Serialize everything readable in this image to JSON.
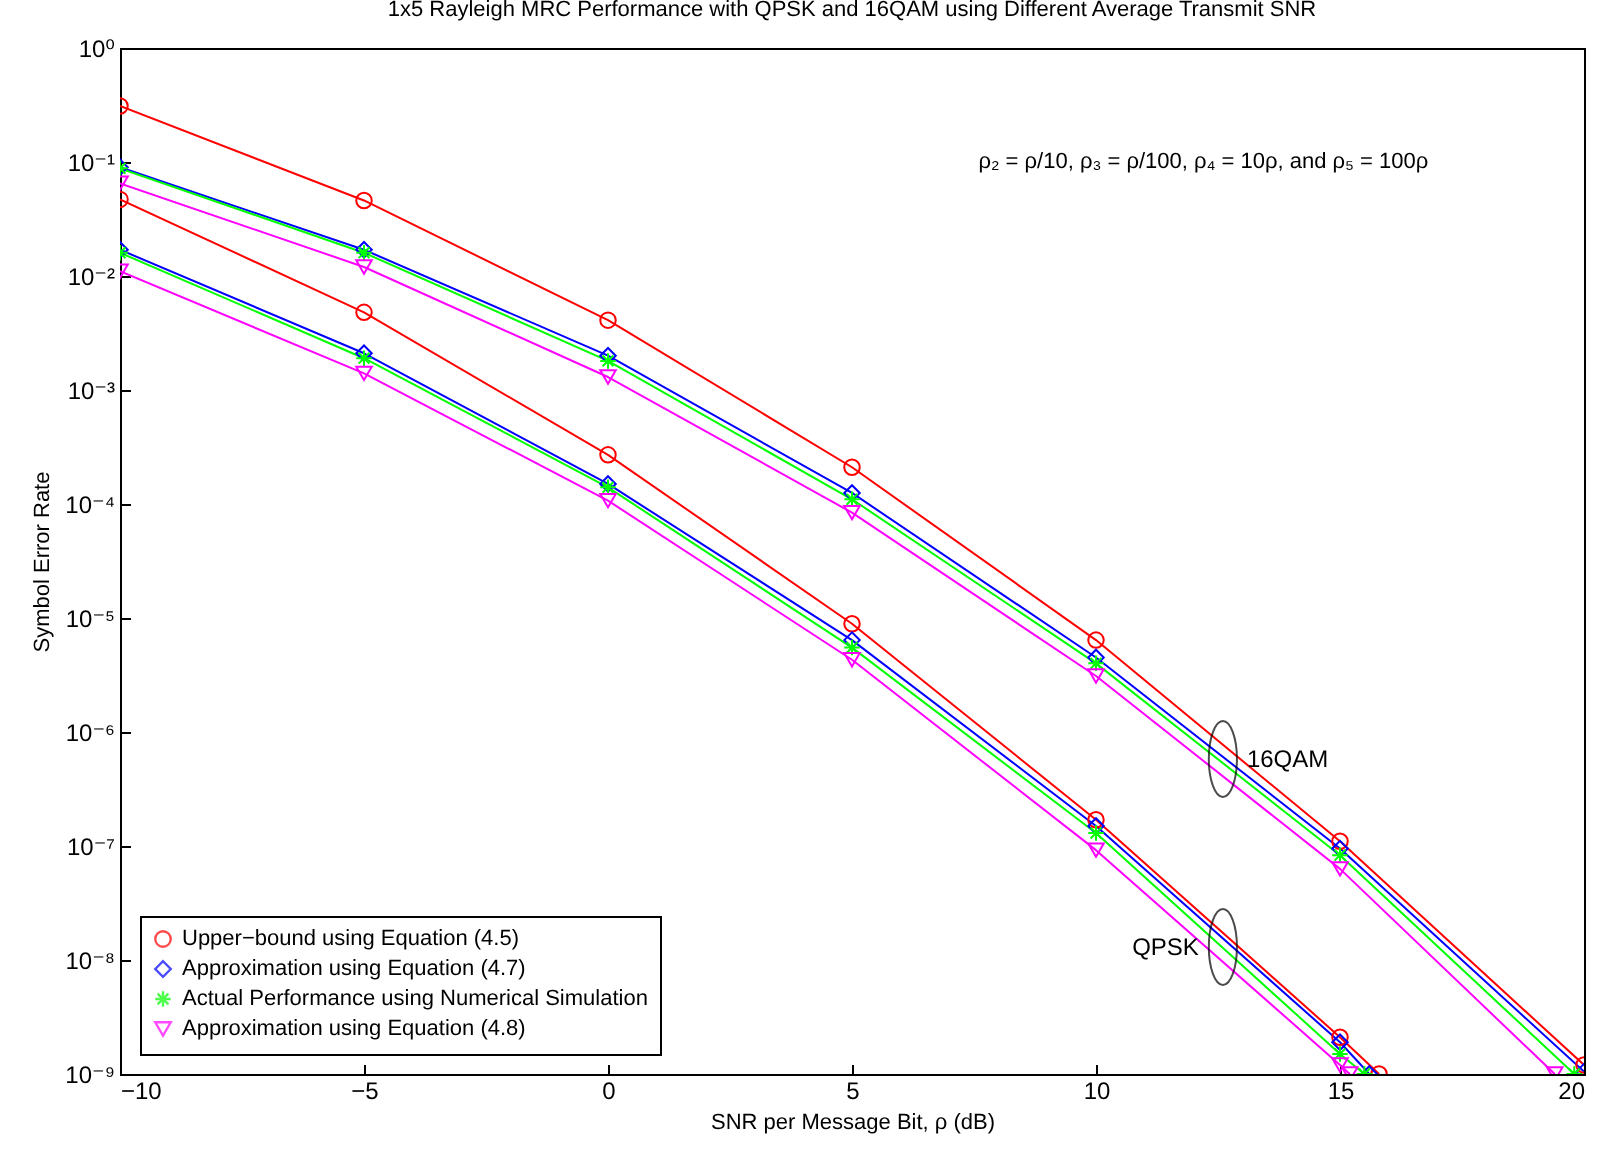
{
  "chart_data": {
    "type": "line",
    "title": "1x5 Rayleigh MRC Performance with QPSK and 16QAM using Different Average Transmit SNR",
    "xlabel": "SNR per Message Bit, ρ (dB)",
    "ylabel": "Symbol Error Rate",
    "log": "y",
    "grid": false,
    "legend": "bottom left",
    "line_style": "solid",
    "xlim": [
      -10,
      20
    ],
    "xticks": [
      {
        "value": -10,
        "label": "−10"
      },
      {
        "value": -5,
        "label": "−5"
      },
      0,
      5,
      10,
      15,
      20
    ],
    "ylim": [
      1e-09,
      1
    ],
    "yticks": [
      {
        "value": 1e-09,
        "label": "10⁻⁹"
      },
      {
        "value": 1e-08,
        "label": "10⁻⁸"
      },
      {
        "value": 1e-07,
        "label": "10⁻⁷"
      },
      {
        "value": 1e-06,
        "label": "10⁻⁶"
      },
      {
        "value": 1e-05,
        "label": "10⁻⁵"
      },
      {
        "value": 0.0001,
        "label": "10⁻⁴"
      },
      {
        "value": 0.001,
        "label": "10⁻³"
      },
      {
        "value": 0.01,
        "label": "10⁻²"
      },
      {
        "value": 0.1,
        "label": "10⁻¹"
      },
      {
        "value": 1,
        "label": "10⁰"
      }
    ],
    "series": [
      {
        "name": "Upper−bound using Equation (4.5)",
        "color": "#ff0000",
        "marker": "circle",
        "x": [
          -10,
          -5,
          0,
          5,
          10,
          15,
          20
        ],
        "values": [
          0.31,
          0.046,
          0.0041,
          0.00021,
          6.4e-06,
          1.1e-07,
          1.2e-09
        ]
      },
      {
        "name": "Approximation using Equation (4.7)",
        "color": "#0000ff",
        "marker": "diamond",
        "x": [
          -10,
          -5,
          0,
          5,
          10,
          15,
          20
        ],
        "values": [
          0.09,
          0.017,
          0.002,
          0.000125,
          4.5e-06,
          9.5e-08,
          1.05e-09
        ]
      },
      {
        "name": "Actual Performance using Numerical Simulation",
        "color": "#00ff00",
        "marker": "cross",
        "x": [
          -10,
          -5,
          0,
          5,
          10,
          15,
          19.8
        ],
        "values": [
          0.088,
          0.016,
          0.0018,
          0.00011,
          4e-06,
          8.3e-08,
          1e-09
        ]
      },
      {
        "name": "Approximation using Equation (4.8)",
        "color": "#ff00ff",
        "marker": "triangle",
        "x": [
          -10,
          -5,
          0,
          5,
          10,
          15,
          19.4
        ],
        "values": [
          0.065,
          0.012,
          0.0013,
          8.4e-05,
          3.1e-06,
          6.3e-08,
          1e-09
        ]
      },
      {
        "color": "#ff0000",
        "marker": "circle",
        "x": [
          -10,
          -5,
          0,
          5,
          10,
          15,
          15.8
        ],
        "values": [
          0.047,
          0.0048,
          0.00027,
          8.9e-06,
          1.7e-07,
          2.1e-09,
          1e-09
        ]
      },
      {
        "color": "#0000ff",
        "marker": "diamond",
        "x": [
          -10,
          -5,
          0,
          5,
          10,
          15,
          15.6
        ],
        "values": [
          0.017,
          0.0021,
          0.00015,
          6.4e-06,
          1.5e-07,
          1.9e-09,
          1e-09
        ]
      },
      {
        "color": "#00ff00",
        "marker": "cross",
        "x": [
          -10,
          -5,
          0,
          5,
          10,
          15,
          15.5
        ],
        "values": [
          0.016,
          0.0019,
          0.00014,
          5.5e-06,
          1.3e-07,
          1.5e-09,
          1e-09
        ]
      },
      {
        "color": "#ff00ff",
        "marker": "triangle",
        "x": [
          -10,
          -5,
          0,
          5,
          10,
          15,
          15.2
        ],
        "values": [
          0.011,
          0.0014,
          0.000107,
          4.3e-06,
          9.2e-08,
          1.2e-09,
          1e-09
        ]
      }
    ],
    "annotations": [
      "ρ₂ = ρ/10, ρ₃ = ρ/100, ρ₄ = 10ρ, and ρ₅ = 100ρ",
      {
        "text": "16QAM",
        "x": 12.6,
        "y": 5.8e-07
      },
      {
        "text": "QPSK",
        "x": 12.6,
        "y": 1.3e-08
      }
    ]
  }
}
